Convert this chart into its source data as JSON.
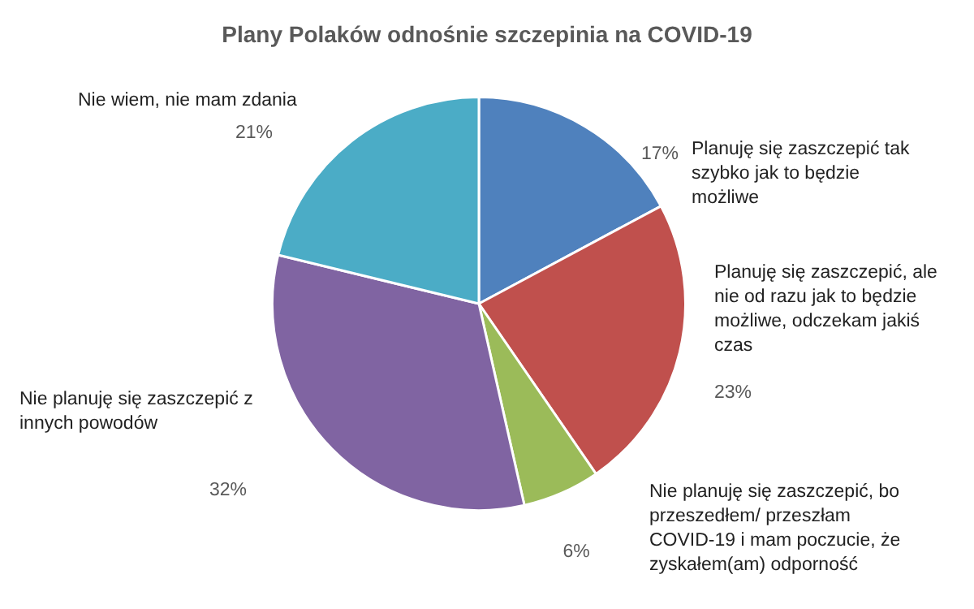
{
  "chart_data": {
    "type": "pie",
    "title": "Plany Polaków odnośnie szczepinia na COVID-19",
    "categories": [
      "Planuję się zaszczepić tak szybko jak to będzie możliwe",
      "Planuję się zaszczepić, ale nie od razu jak to będzie możliwe, odczekam jakiś czas",
      "Nie planuję się zaszczepić, bo przeszedłem/ przeszłam COVID-19 i mam poczucie, że zyskałem(am) odporność",
      "Nie planuję się zaszczepić z innych powodów",
      "Nie wiem, nie mam zdania"
    ],
    "values": [
      17,
      23,
      6,
      32,
      21
    ],
    "value_labels": [
      "17%",
      "23%",
      "6%",
      "32%",
      "21%"
    ],
    "colors": [
      "#4f81bd",
      "#c0504d",
      "#9bbb59",
      "#8064a2",
      "#4bacc6"
    ],
    "legend": false
  }
}
